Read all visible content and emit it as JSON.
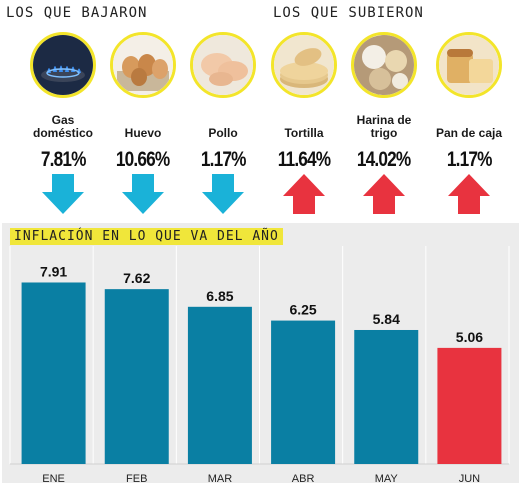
{
  "sections": {
    "down_title": "LOS QUE BAJARON",
    "up_title": "LOS QUE SUBIERON"
  },
  "items": [
    {
      "label": "Gas\ndoméstico",
      "value": "7.81%",
      "direction": "down",
      "icon": "gas-stove-icon"
    },
    {
      "label": "Huevo",
      "value": "10.66%",
      "direction": "down",
      "icon": "eggs-icon"
    },
    {
      "label": "Pollo",
      "value": "1.17%",
      "direction": "down",
      "icon": "chicken-icon"
    },
    {
      "label": "Tortilla",
      "value": "11.64%",
      "direction": "up",
      "icon": "tortilla-icon"
    },
    {
      "label": "Harina de\ntrigo",
      "value": "14.02%",
      "direction": "up",
      "icon": "flour-icon"
    },
    {
      "label": "Pan de caja",
      "value": "1.17%",
      "direction": "up",
      "icon": "bread-icon"
    }
  ],
  "colors": {
    "down_arrow": "#1ab2d8",
    "up_arrow": "#e8333f",
    "bar": "#0a7fa3",
    "bar_highlight": "#e8333f",
    "photo_border": "#f3e52a",
    "title_highlight": "#f0e63a",
    "grid": "#ffffff"
  },
  "chart_data": {
    "type": "bar",
    "title": "INFLACIÓN EN LO QUE VA DEL AÑO",
    "categories": [
      "ENE",
      "FEB",
      "MAR",
      "ABR",
      "MAY",
      "JUN"
    ],
    "values": [
      7.91,
      7.62,
      6.85,
      6.25,
      5.84,
      5.06
    ],
    "value_labels": [
      "7.91",
      "7.62",
      "6.85",
      "6.25",
      "5.84",
      "5.06"
    ],
    "highlight_index": 5,
    "ylim": [
      0,
      9.5
    ],
    "grid": true,
    "xlabel": "",
    "ylabel": ""
  }
}
